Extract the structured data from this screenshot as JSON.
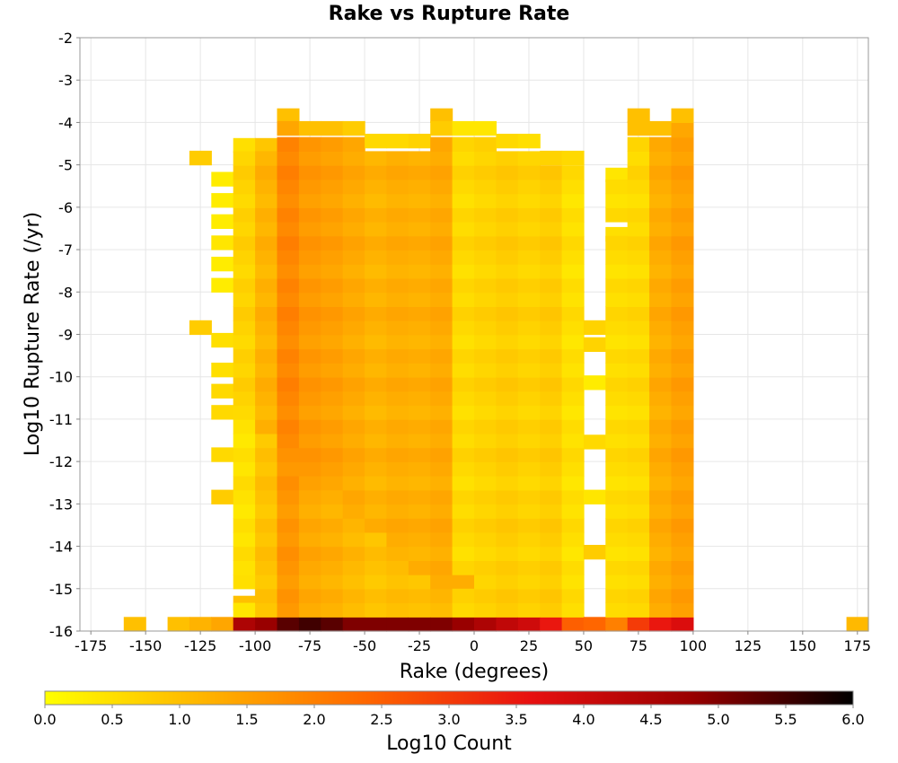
{
  "chart_data": {
    "type": "heatmap",
    "title": "Rake vs Rupture Rate",
    "xlabel": "Rake (degrees)",
    "ylabel": "Log10 Rupture Rate (/yr)",
    "xlim": [
      -180,
      180
    ],
    "ylim": [
      -16,
      -2
    ],
    "x_ticks": [
      -175,
      -150,
      -125,
      -100,
      -75,
      -50,
      -25,
      0,
      25,
      50,
      75,
      100,
      125,
      150,
      175
    ],
    "y_ticks": [
      -2,
      -3,
      -4,
      -5,
      -6,
      -7,
      -8,
      -9,
      -10,
      -11,
      -12,
      -13,
      -14,
      -15,
      -16
    ],
    "x_bin_width": 10,
    "y_bin_width": 0.333,
    "grid": true,
    "colorbar": {
      "label": "Log10 Count",
      "min": 0.0,
      "max": 6.0,
      "ticks": [
        "0.0",
        "0.5",
        "1.0",
        "1.5",
        "2.0",
        "2.5",
        "3.0",
        "3.5",
        "4.0",
        "4.5",
        "5.0",
        "5.5",
        "6.0"
      ],
      "colors": [
        "#ffff00",
        "#ffb300",
        "#ff6600",
        "#e81010",
        "#990000",
        "#000000"
      ]
    },
    "columns": [
      {
        "x": -155,
        "cells": [
          [
            -16,
            1.0
          ]
        ]
      },
      {
        "x": -135,
        "cells": [
          [
            -16,
            1.0
          ]
        ]
      },
      {
        "x": -125,
        "cells": [
          [
            -16,
            1.2
          ],
          [
            -5,
            0.8
          ],
          [
            -9,
            0.8
          ]
        ]
      },
      {
        "x": -115,
        "cells": [
          [
            -16,
            1.4
          ],
          [
            -5.5,
            0.3
          ],
          [
            -6,
            0.3
          ],
          [
            -6.5,
            0.3
          ],
          [
            -7,
            0.4
          ],
          [
            -7.5,
            0.3
          ],
          [
            -8,
            0.3
          ],
          [
            -9.3,
            0.5
          ],
          [
            -10,
            0.5
          ],
          [
            -10.5,
            0.6
          ],
          [
            -11,
            0.6
          ],
          [
            -12,
            0.6
          ],
          [
            -13,
            0.8
          ]
        ]
      },
      {
        "x": -105,
        "cells": [
          [
            -16,
            4.5
          ],
          [
            -4.7,
            0.5
          ],
          [
            -15,
            0.5
          ],
          [
            -15.5,
            1.0
          ],
          "R0.7"
        ]
      },
      {
        "x": -95,
        "cells": [
          [
            -16,
            4.8
          ],
          [
            -4.7,
            0.9
          ],
          "R1.2"
        ]
      },
      {
        "x": -85,
        "cells": [
          [
            -16,
            5.3
          ],
          [
            -4,
            1.0
          ],
          [
            -4.3,
            1.4
          ],
          "R1.9"
        ]
      },
      {
        "x": -75,
        "cells": [
          [
            -16,
            5.5
          ],
          [
            -4.3,
            1.0
          ],
          "R1.6"
        ]
      },
      {
        "x": -65,
        "cells": [
          [
            -16,
            5.3
          ],
          [
            -4.3,
            1.0
          ],
          "R1.5"
        ]
      },
      {
        "x": -55,
        "cells": [
          [
            -16,
            5.0
          ],
          [
            -4.3,
            0.8
          ],
          "R1.35"
        ]
      },
      {
        "x": -45,
        "cells": [
          [
            -16,
            5.0
          ],
          [
            -4.6,
            0.6
          ],
          "R1.2"
        ]
      },
      {
        "x": -35,
        "cells": [
          [
            -16,
            5.0
          ],
          [
            -4.6,
            0.6
          ],
          "R1.3"
        ]
      },
      {
        "x": -25,
        "cells": [
          [
            -16,
            5.0
          ],
          [
            -4.6,
            0.7
          ],
          "R1.25"
        ]
      },
      {
        "x": -15,
        "cells": [
          [
            -16,
            5.0
          ],
          [
            -4,
            1.0
          ],
          [
            -4.3,
            0.8
          ],
          "R1.35"
        ]
      },
      {
        "x": -5,
        "cells": [
          [
            -16,
            4.8
          ],
          [
            -4.3,
            0.4
          ],
          [
            -15,
            1.3
          ],
          "R0.6"
        ]
      },
      {
        "x": 5,
        "cells": [
          [
            -16,
            4.5
          ],
          [
            -4.3,
            0.4
          ],
          "R0.7"
        ]
      },
      {
        "x": 15,
        "cells": [
          [
            -16,
            4.2
          ],
          [
            -4.6,
            0.6
          ],
          "R0.8"
        ]
      },
      {
        "x": 25,
        "cells": [
          [
            -16,
            4.0
          ],
          [
            -4.6,
            0.5
          ],
          "R0.7"
        ]
      },
      {
        "x": 35,
        "cells": [
          [
            -16,
            3.5
          ],
          [
            -5.0,
            0.7
          ],
          "R0.8"
        ]
      },
      {
        "x": 45,
        "cells": [
          [
            -16,
            2.5
          ],
          [
            -5.0,
            0.6
          ],
          "R0.5"
        ]
      },
      {
        "x": 55,
        "cells": [
          [
            -16,
            2.4
          ],
          [
            -9,
            0.7
          ],
          [
            -9.4,
            0.7
          ],
          [
            -10.3,
            0.3
          ],
          [
            -11.7,
            0.6
          ],
          [
            -13,
            0.4
          ],
          [
            -14.3,
            0.8
          ]
        ]
      },
      {
        "x": 65,
        "cells": [
          [
            -16,
            2.0
          ],
          [
            -5.4,
            0.4
          ],
          [
            -6.8,
            0.5
          ],
          "R0.55"
        ]
      },
      {
        "x": 75,
        "cells": [
          [
            -16,
            3.0
          ],
          [
            -4,
            1.0
          ],
          [
            -4.3,
            1.0
          ],
          "R0.6"
        ]
      },
      {
        "x": 85,
        "cells": [
          [
            -16,
            3.5
          ],
          [
            -4.3,
            1.0
          ],
          "R1.3"
        ]
      },
      {
        "x": 95,
        "cells": [
          [
            -16,
            3.8
          ],
          [
            -4,
            1.0
          ],
          "R1.5"
        ]
      },
      {
        "x": 175,
        "cells": [
          [
            -16,
            1.1
          ]
        ]
      }
    ]
  }
}
